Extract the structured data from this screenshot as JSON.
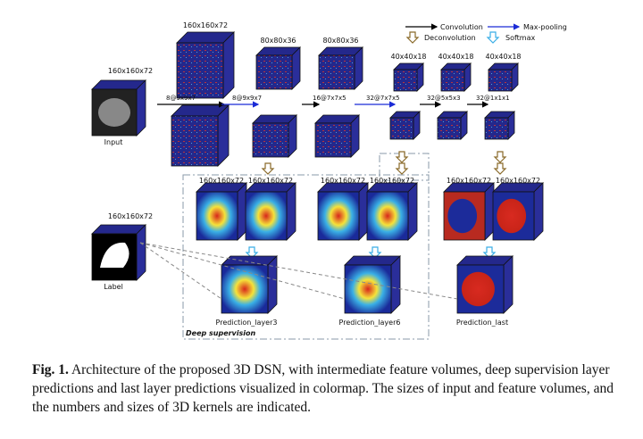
{
  "legend": [
    "Convolution",
    "Max-pooling",
    "Deconvolution",
    "Softmax"
  ],
  "input": {
    "label": "Input",
    "size": "160x160x72"
  },
  "label_volume": {
    "label": "Label",
    "size": "160x160x72"
  },
  "feature_sizes": [
    "160x160x72",
    "80x80x36",
    "80x80x36",
    "40x40x18",
    "40x40x18",
    "40x40x18"
  ],
  "kernels": [
    "8@9x9x7",
    "8@9x9x7",
    "16@7x7x5",
    "32@7x7x5",
    "32@5x5x3",
    "32@1x1x1"
  ],
  "deconv_sizes": [
    "160x160x72",
    "160x160x72",
    "160x160x72",
    "160x160x72",
    "160x160x72",
    "160x160x72"
  ],
  "predictions": [
    "Prediction_layer3",
    "Prediction_layer6",
    "Prediction_last"
  ],
  "deep_supervision": "Deep supervision",
  "caption": {
    "label": "Fig. 1.",
    "text": "Architecture of the proposed 3D DSN, with intermediate feature volumes, deep supervision layer predictions and last layer predictions visualized in colormap. The sizes of input and feature volumes, and the numbers and sizes of 3D kernels are indicated."
  }
}
